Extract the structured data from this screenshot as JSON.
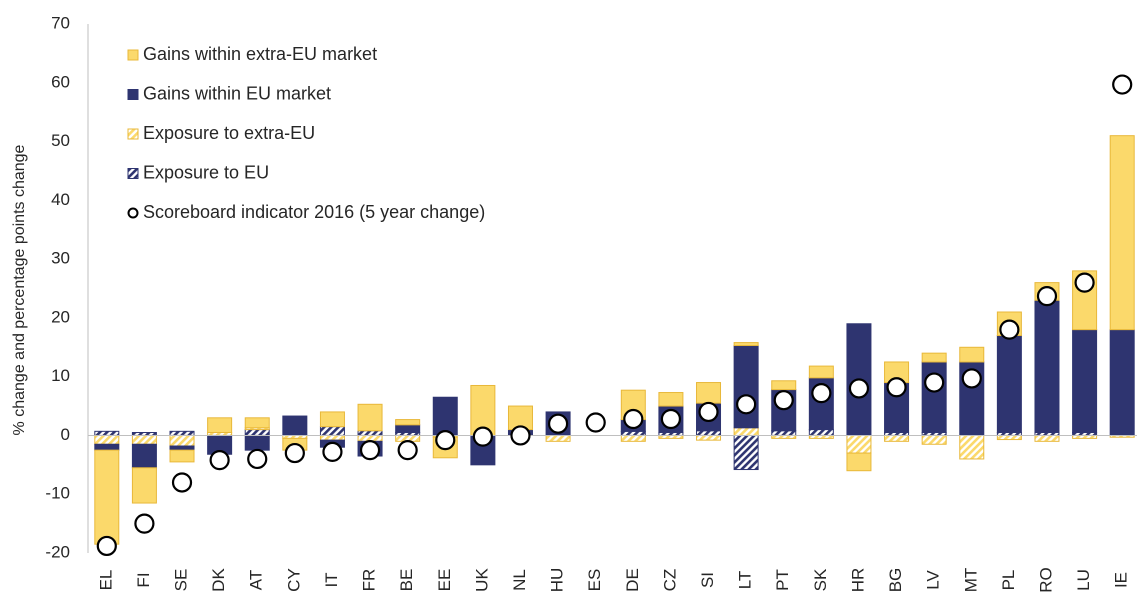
{
  "chart_data": {
    "type": "bar",
    "stacked": true,
    "y_label": "% change and percentage points change",
    "categories": [
      "EL",
      "FI",
      "SE",
      "DK",
      "AT",
      "CY",
      "IT",
      "FR",
      "BE",
      "EE",
      "UK",
      "NL",
      "HU",
      "ES",
      "DE",
      "CZ",
      "SI",
      "LT",
      "PT",
      "SK",
      "HR",
      "BG",
      "LV",
      "MT",
      "PL",
      "RO",
      "LU",
      "IE"
    ],
    "series": [
      {
        "name": "Gains within extra-EU market",
        "type": "bar",
        "hatched": false,
        "color": "#fbd96b",
        "values": [
          -16,
          -6,
          -2,
          2.5,
          1.7,
          -2,
          2.5,
          4.5,
          0.9,
          -3.5,
          8.5,
          4,
          0,
          0,
          5,
          2.3,
          3.5,
          0.5,
          1.5,
          2,
          -3,
          3.5,
          1.5,
          2.5,
          4,
          3,
          10,
          33
        ]
      },
      {
        "name": "Gains within EU market",
        "type": "bar",
        "hatched": false,
        "color": "#2e3470",
        "values": [
          -1,
          -4,
          -0.7,
          -3.2,
          -2.5,
          3.3,
          -1.2,
          -2.5,
          1.3,
          6.5,
          -5,
          1,
          4,
          0,
          2,
          4.5,
          4.7,
          14,
          7,
          8.8,
          19,
          8.5,
          12,
          12.5,
          16.5,
          22.5,
          17.5,
          18
        ]
      },
      {
        "name": "Exposure to extra-EU",
        "type": "bar",
        "hatched": true,
        "color": "#fbd96b",
        "values": [
          -1.5,
          -1.5,
          -1.8,
          0.5,
          0.3,
          -0.5,
          -0.8,
          -1,
          -1,
          -0.3,
          0,
          0,
          -1,
          0,
          -1,
          -0.5,
          -0.8,
          1.3,
          -0.5,
          -0.5,
          -3,
          -1,
          -1.5,
          -4,
          -0.7,
          -1,
          -0.5,
          -0.3
        ]
      },
      {
        "name": "Exposure to EU",
        "type": "bar",
        "hatched": true,
        "color": "#2e3470",
        "values": [
          0.7,
          0.5,
          0.7,
          0,
          1,
          0,
          1.5,
          0.8,
          0.5,
          0,
          0,
          0,
          0,
          0,
          0.7,
          0.5,
          0.8,
          -5.8,
          0.8,
          1,
          0,
          0.5,
          0.5,
          0,
          0.5,
          0.5,
          0.5,
          0
        ]
      },
      {
        "name": "Scoreboard indicator 2016 (5 year change)",
        "type": "scatter",
        "color": "#000000",
        "values": [
          -18.8,
          -15,
          -8,
          -4.2,
          -4,
          -3,
          -2.8,
          -2.5,
          -2.5,
          -0.8,
          -0.2,
          0,
          2,
          2.2,
          2.8,
          2.8,
          4,
          5.3,
          6,
          7.2,
          8,
          8.2,
          9,
          9.7,
          18,
          23.7,
          26,
          59.7
        ]
      }
    ],
    "ylim": [
      -20,
      70
    ],
    "yticks": [
      -20,
      -10,
      0,
      10,
      20,
      30,
      40,
      50,
      60,
      70
    ],
    "bar_edge_color": "#e8b83a",
    "legend": "upper left"
  }
}
